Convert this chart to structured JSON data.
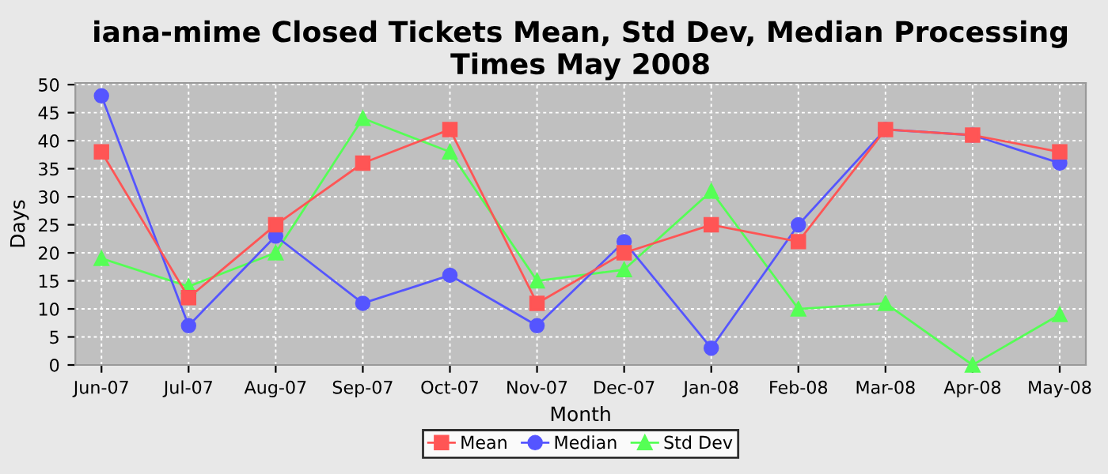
{
  "chart_data": {
    "type": "line",
    "title": "iana-mime Closed Tickets Mean, Std Dev, Median Processing Times May 2008",
    "xlabel": "Month",
    "ylabel": "Days",
    "categories": [
      "Jun-07",
      "Jul-07",
      "Aug-07",
      "Sep-07",
      "Oct-07",
      "Nov-07",
      "Dec-07",
      "Jan-08",
      "Feb-08",
      "Mar-08",
      "Apr-08",
      "May-08"
    ],
    "series": [
      {
        "name": "Mean",
        "color": "#ff5555",
        "marker": "square",
        "values": [
          38,
          12,
          25,
          36,
          42,
          11,
          20,
          25,
          22,
          42,
          41,
          38
        ]
      },
      {
        "name": "Median",
        "color": "#5555ff",
        "marker": "circle",
        "values": [
          48,
          7,
          23,
          11,
          16,
          7,
          22,
          3,
          25,
          42,
          41,
          36
        ]
      },
      {
        "name": "Std Dev",
        "color": "#55ff55",
        "marker": "triangle",
        "values": [
          19,
          14,
          20,
          44,
          38,
          15,
          17,
          31,
          10,
          11,
          0,
          9
        ]
      }
    ],
    "ylim": [
      0,
      50.3
    ],
    "yticks": [
      0,
      5,
      10,
      15,
      20,
      25,
      30,
      35,
      40,
      45,
      50
    ],
    "grid": true,
    "legend": "bottom",
    "line_style": "solid"
  }
}
